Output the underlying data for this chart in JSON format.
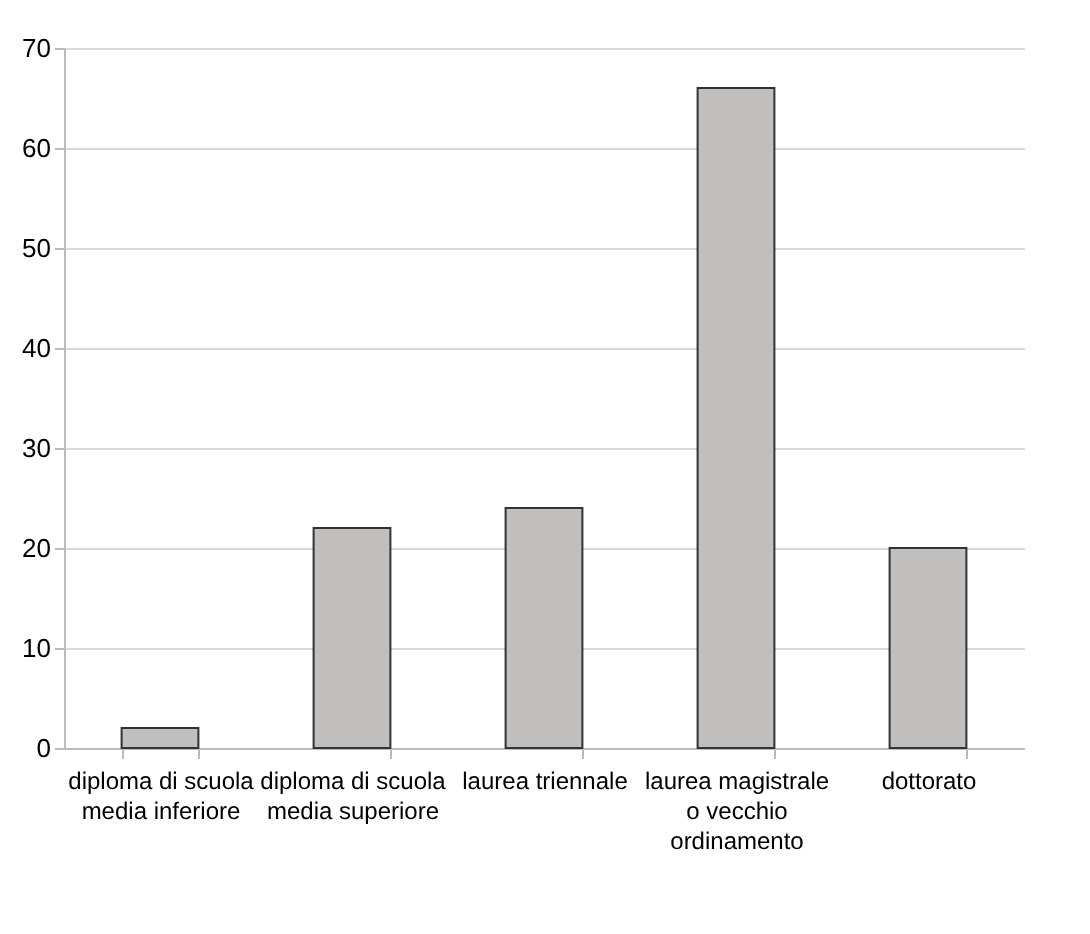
{
  "chart_data": {
    "type": "bar",
    "categories": [
      "diploma di scuola media inferiore",
      "diploma di scuola media superiore",
      "laurea triennale",
      "laurea magistrale o vecchio ordinamento",
      "dottorato"
    ],
    "values": [
      2,
      22,
      24,
      66,
      20
    ],
    "color": "#c0bfbd",
    "ylim": [
      0,
      70
    ],
    "yticks": [
      0,
      10,
      20,
      30,
      40,
      50,
      60,
      70
    ],
    "grid": "y"
  }
}
